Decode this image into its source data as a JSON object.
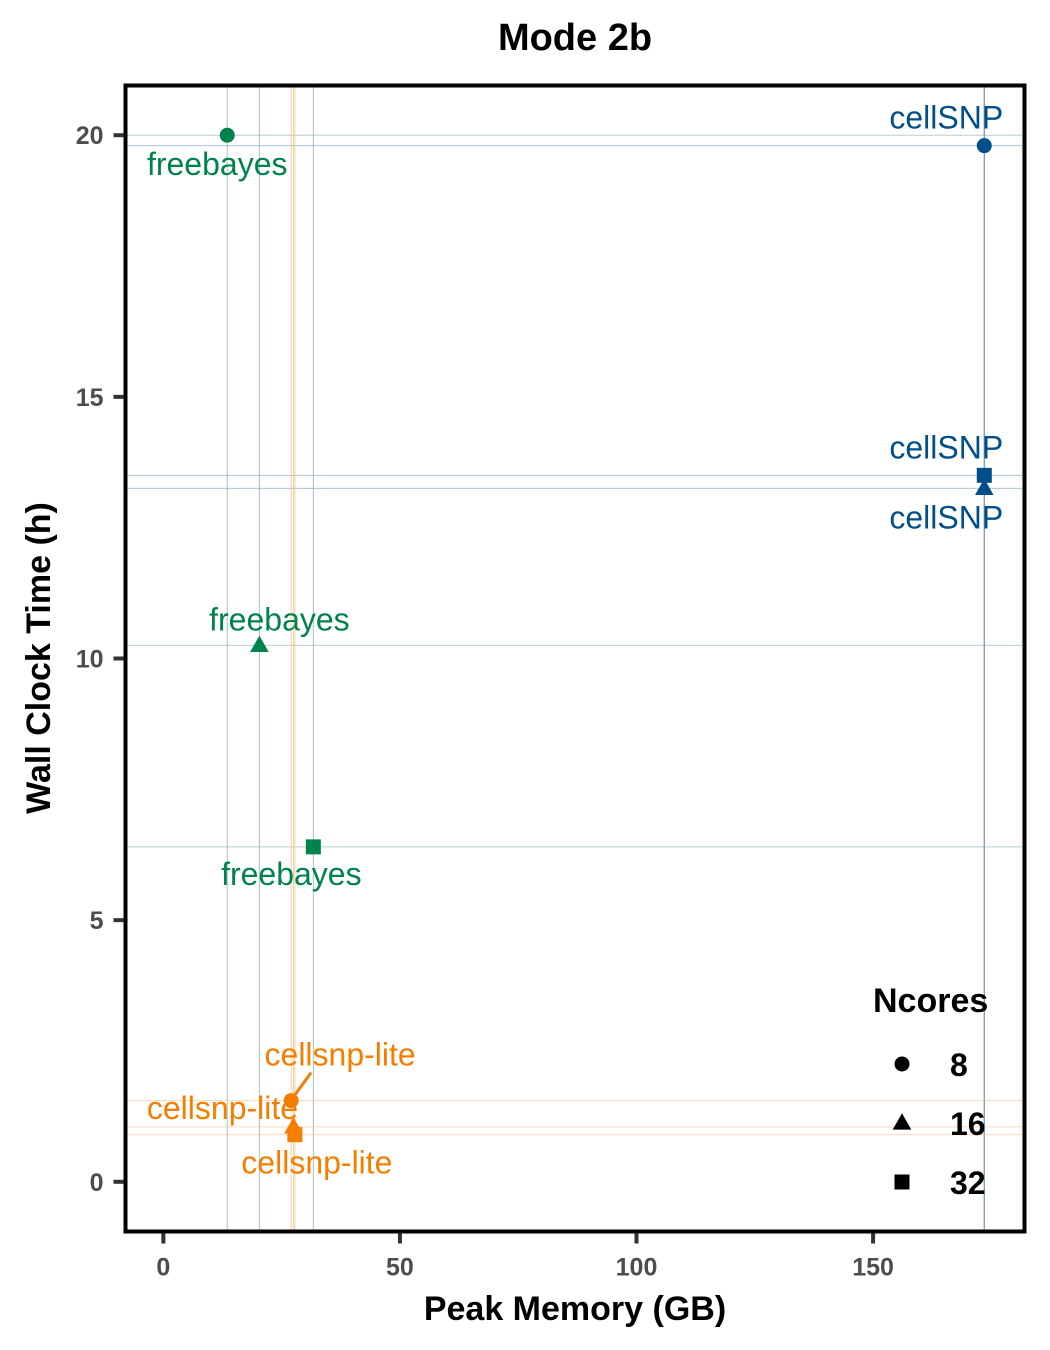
{
  "chart_data": {
    "type": "scatter",
    "title": "Mode 2b",
    "xlabel": "Peak Memory (GB)",
    "ylabel": "Wall Clock Time (h)",
    "xlim": [
      -8,
      182
    ],
    "ylim": [
      -0.95,
      20.95
    ],
    "xticks": [
      0,
      50,
      100,
      150
    ],
    "yticks": [
      0,
      5,
      10,
      15,
      20
    ],
    "grid": false,
    "reference_lines": true,
    "legend": {
      "title": "Ncores",
      "placement": "bottom-right",
      "entries": [
        {
          "label": "8",
          "shape": "circle"
        },
        {
          "label": "16",
          "shape": "triangle"
        },
        {
          "label": "32",
          "shape": "square"
        }
      ]
    },
    "colors": {
      "freebayes": "#00834b",
      "cellSNP": "#004f8a",
      "cellsnp-lite": "#f57d00"
    },
    "points": [
      {
        "tool": "freebayes",
        "ncores": 8,
        "x": 13.5,
        "y": 20.0,
        "label": "freebayes"
      },
      {
        "tool": "freebayes",
        "ncores": 16,
        "x": 20.3,
        "y": 10.25,
        "label": "freebayes"
      },
      {
        "tool": "freebayes",
        "ncores": 32,
        "x": 31.7,
        "y": 6.4,
        "label": "freebayes"
      },
      {
        "tool": "cellSNP",
        "ncores": 8,
        "x": 173.5,
        "y": 19.8,
        "label": "cellSNP"
      },
      {
        "tool": "cellSNP",
        "ncores": 16,
        "x": 173.5,
        "y": 13.25,
        "label": "cellSNP"
      },
      {
        "tool": "cellSNP",
        "ncores": 32,
        "x": 173.5,
        "y": 13.5,
        "label": "cellSNP"
      },
      {
        "tool": "cellsnp-lite",
        "ncores": 8,
        "x": 27.0,
        "y": 1.55,
        "label": "cellsnp-lite"
      },
      {
        "tool": "cellsnp-lite",
        "ncores": 16,
        "x": 27.5,
        "y": 1.05,
        "label": "cellsnp-lite"
      },
      {
        "tool": "cellsnp-lite",
        "ncores": 32,
        "x": 27.8,
        "y": 0.9,
        "label": "cellsnp-lite"
      }
    ]
  }
}
